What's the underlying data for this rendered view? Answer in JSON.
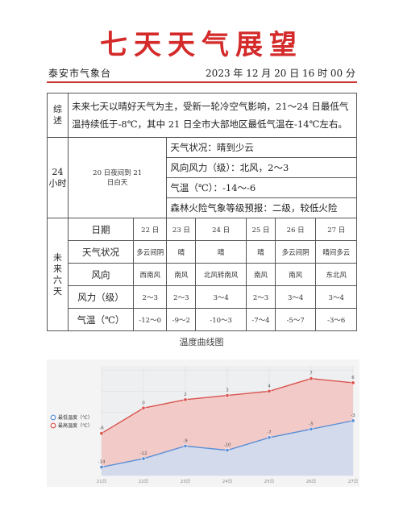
{
  "header": {
    "title": "七天天气展望",
    "issuer": "泰安市气象台",
    "issue_time": "2023 年 12 月 20 日 16 时 00 分"
  },
  "summary": {
    "label": "综述",
    "text": "未来七天以晴好天气为主，受新一轮冷空气影响，21～24 日最低气温持续低于-8℃，其中 21 日全市大部地区最低气温在-14℃左右。"
  },
  "forecast_24h": {
    "label": "24小时",
    "period": "20 日夜间到 21 日白天",
    "lines": [
      "天气状况：晴到少云",
      "风向风力（级）：北风，2～3",
      "气温（℃）：-14～-6",
      "森林火险气象等级预报：二级，较低火险"
    ]
  },
  "outlook": {
    "label": "未来六天",
    "row_labels": [
      "日期",
      "天气状况",
      "风向",
      "风力（级）",
      "气温（℃）"
    ],
    "dates": [
      "22 日",
      "23 日",
      "24 日",
      "25 日",
      "26 日",
      "27 日"
    ],
    "weather": [
      "多云间阴",
      "晴",
      "晴",
      "晴",
      "多云间阴",
      "晴间多云"
    ],
    "wind_dir": [
      "西南风",
      "南风",
      "北风转南风",
      "南风",
      "南风",
      "东北风"
    ],
    "wind_force": [
      "2～3",
      "2～3",
      "3～4",
      "2～3",
      "3～4",
      "3～4"
    ],
    "temp": [
      "-12～0",
      "-9～2",
      "-10～3",
      "-7～4",
      "-5～7",
      "-3～6"
    ]
  },
  "chart_caption": "温度曲线图",
  "chart_data": {
    "type": "area",
    "categories": [
      "21日",
      "22日",
      "23日",
      "24日",
      "25日",
      "26日",
      "27日"
    ],
    "series": [
      {
        "name": "最低温度（℃）",
        "values": [
          -14,
          -12,
          -9,
          -10,
          -7,
          -5,
          -3
        ],
        "color": "#5b8fd6"
      },
      {
        "name": "最高温度（℃）",
        "values": [
          -6,
          0,
          2,
          3,
          4,
          7,
          6
        ],
        "color": "#d9534f"
      }
    ],
    "ylim": [
      -16,
      10
    ],
    "grid": true,
    "legend": "left"
  },
  "colors": {
    "title_red": "#d42a2a",
    "rule_red": "#c8322f"
  }
}
